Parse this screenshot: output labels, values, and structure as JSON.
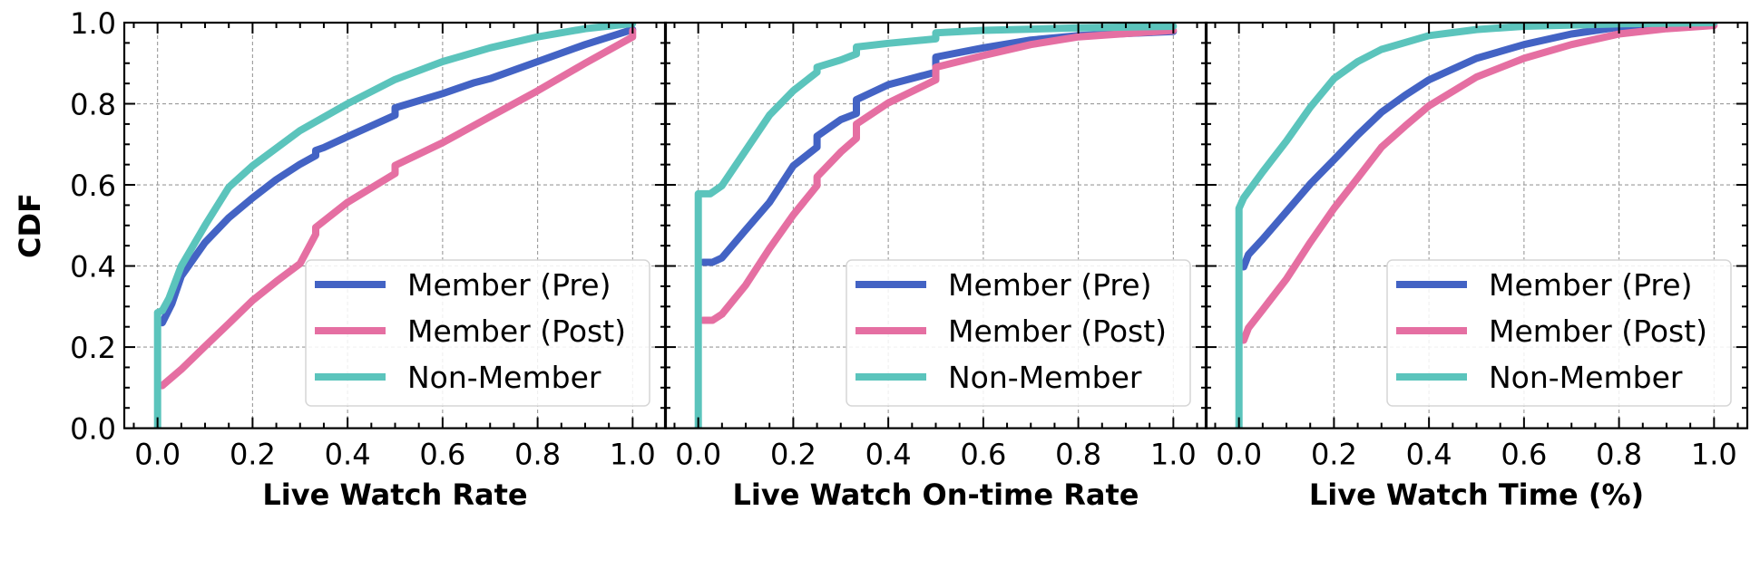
{
  "chart_data": [
    {
      "type": "line",
      "panel": "left",
      "title": "",
      "xlabel": "Live Watch Rate",
      "ylabel": "CDF",
      "xlim": [
        -0.07,
        1.07
      ],
      "ylim": [
        0.0,
        1.0
      ],
      "xticks": [
        "0.0",
        "0.2",
        "0.4",
        "0.6",
        "0.8",
        "1.0"
      ],
      "yticks": [
        "0.0",
        "0.2",
        "0.4",
        "0.6",
        "0.8",
        "1.0"
      ],
      "grid": true,
      "legend_position": "lower-right",
      "series": [
        {
          "name": "Member (Pre)",
          "color": "#4363C4",
          "x": [
            0.01,
            0.03,
            0.05,
            0.1,
            0.15,
            0.2,
            0.25,
            0.3,
            0.333,
            0.333,
            0.35,
            0.4,
            0.5,
            0.5,
            0.6,
            0.667,
            0.7,
            0.8,
            0.9,
            1.0
          ],
          "y": [
            0.26,
            0.307,
            0.375,
            0.458,
            0.519,
            0.568,
            0.613,
            0.651,
            0.672,
            0.685,
            0.692,
            0.719,
            0.772,
            0.79,
            0.825,
            0.852,
            0.862,
            0.904,
            0.946,
            0.983
          ]
        },
        {
          "name": "Member (Post)",
          "color": "#E56FA2",
          "x": [
            0.01,
            0.05,
            0.1,
            0.15,
            0.2,
            0.25,
            0.3,
            0.333,
            0.333,
            0.4,
            0.5,
            0.5,
            0.6,
            0.7,
            0.8,
            0.9,
            1.0,
            1.0
          ],
          "y": [
            0.105,
            0.145,
            0.202,
            0.258,
            0.315,
            0.362,
            0.406,
            0.478,
            0.495,
            0.557,
            0.628,
            0.648,
            0.704,
            0.768,
            0.832,
            0.9,
            0.965,
            0.98
          ]
        },
        {
          "name": "Non-Member",
          "color": "#5BC4BC",
          "x": [
            0.0,
            0.0,
            0.01,
            0.024,
            0.05,
            0.1,
            0.15,
            0.2,
            0.3,
            0.4,
            0.5,
            0.6,
            0.7,
            0.8,
            0.9,
            1.0
          ],
          "y": [
            0.0,
            0.285,
            0.29,
            0.32,
            0.4,
            0.5,
            0.594,
            0.647,
            0.734,
            0.8,
            0.86,
            0.904,
            0.938,
            0.965,
            0.985,
            0.998
          ]
        }
      ]
    },
    {
      "type": "line",
      "panel": "middle",
      "title": "",
      "xlabel": "Live Watch On-time Rate",
      "ylabel": "",
      "xlim": [
        -0.07,
        1.07
      ],
      "ylim": [
        0.0,
        1.0
      ],
      "xticks": [
        "0.0",
        "0.2",
        "0.4",
        "0.6",
        "0.8",
        "1.0"
      ],
      "yticks": [],
      "grid": true,
      "legend_position": "lower-right",
      "series": [
        {
          "name": "Member (Pre)",
          "color": "#4363C4",
          "x": [
            0.01,
            0.03,
            0.05,
            0.1,
            0.15,
            0.2,
            0.25,
            0.25,
            0.3,
            0.333,
            0.333,
            0.4,
            0.5,
            0.5,
            0.6,
            0.7,
            0.8,
            1.0
          ],
          "y": [
            0.409,
            0.409,
            0.42,
            0.489,
            0.557,
            0.647,
            0.693,
            0.72,
            0.761,
            0.776,
            0.81,
            0.847,
            0.878,
            0.915,
            0.938,
            0.957,
            0.968,
            0.978
          ]
        },
        {
          "name": "Member (Post)",
          "color": "#E56FA2",
          "x": [
            0.01,
            0.03,
            0.05,
            0.1,
            0.15,
            0.2,
            0.25,
            0.25,
            0.3,
            0.333,
            0.333,
            0.4,
            0.5,
            0.5,
            0.6,
            0.7,
            0.8,
            1.0
          ],
          "y": [
            0.266,
            0.266,
            0.281,
            0.353,
            0.443,
            0.526,
            0.598,
            0.62,
            0.681,
            0.715,
            0.75,
            0.802,
            0.859,
            0.89,
            0.919,
            0.946,
            0.965,
            0.981
          ]
        },
        {
          "name": "Non-Member",
          "color": "#5BC4BC",
          "x": [
            0.0,
            0.0,
            0.025,
            0.05,
            0.1,
            0.15,
            0.2,
            0.25,
            0.25,
            0.3,
            0.333,
            0.333,
            0.4,
            0.5,
            0.5,
            0.6,
            0.8,
            1.0
          ],
          "y": [
            0.0,
            0.578,
            0.578,
            0.598,
            0.685,
            0.772,
            0.832,
            0.878,
            0.89,
            0.908,
            0.923,
            0.94,
            0.949,
            0.96,
            0.975,
            0.981,
            0.987,
            0.991
          ]
        }
      ]
    },
    {
      "type": "line",
      "panel": "right",
      "title": "",
      "xlabel": "Live Watch Time (%)",
      "ylabel": "",
      "xlim": [
        -0.07,
        1.07
      ],
      "ylim": [
        0.0,
        1.0
      ],
      "xticks": [
        "0.0",
        "0.2",
        "0.4",
        "0.6",
        "0.8",
        "1.0"
      ],
      "yticks": [],
      "grid": true,
      "legend_position": "lower-right",
      "series": [
        {
          "name": "Member (Pre)",
          "color": "#4363C4",
          "x": [
            0.01,
            0.02,
            0.05,
            0.1,
            0.15,
            0.2,
            0.25,
            0.3,
            0.35,
            0.4,
            0.5,
            0.6,
            0.7,
            0.8,
            0.9,
            1.0
          ],
          "y": [
            0.398,
            0.428,
            0.466,
            0.534,
            0.602,
            0.662,
            0.723,
            0.779,
            0.821,
            0.859,
            0.912,
            0.946,
            0.972,
            0.989,
            0.996,
            0.998
          ]
        },
        {
          "name": "Member (Post)",
          "color": "#E56FA2",
          "x": [
            0.01,
            0.02,
            0.05,
            0.1,
            0.15,
            0.2,
            0.25,
            0.3,
            0.35,
            0.4,
            0.5,
            0.6,
            0.7,
            0.8,
            0.9,
            1.0
          ],
          "y": [
            0.217,
            0.247,
            0.292,
            0.368,
            0.458,
            0.542,
            0.617,
            0.693,
            0.745,
            0.795,
            0.866,
            0.912,
            0.946,
            0.972,
            0.985,
            0.993
          ]
        },
        {
          "name": "Non-Member",
          "color": "#5BC4BC",
          "x": [
            0.0,
            0.0,
            0.01,
            0.05,
            0.1,
            0.15,
            0.2,
            0.25,
            0.3,
            0.4,
            0.5,
            0.6,
            0.8,
            1.0
          ],
          "y": [
            0.0,
            0.542,
            0.568,
            0.632,
            0.708,
            0.791,
            0.862,
            0.904,
            0.934,
            0.968,
            0.983,
            0.991,
            0.997,
            1.0
          ]
        }
      ]
    }
  ]
}
